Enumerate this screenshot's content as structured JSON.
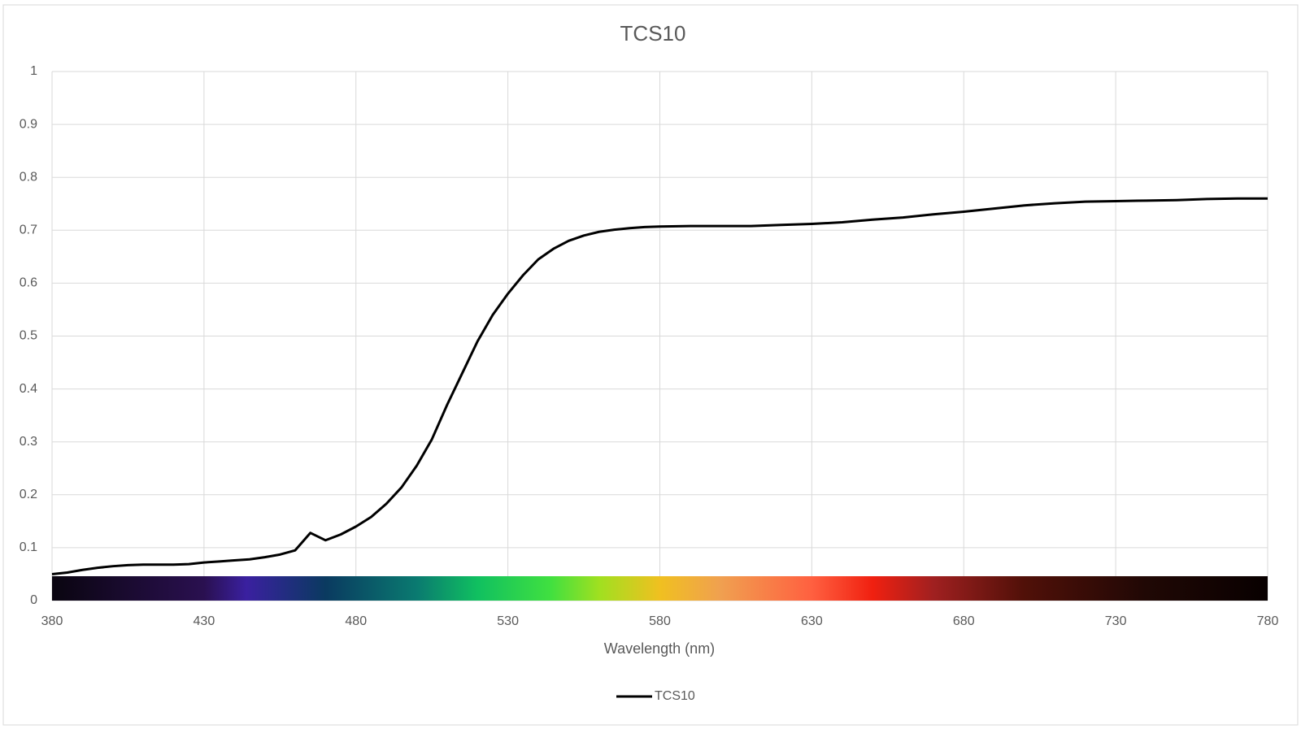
{
  "chart_data": {
    "type": "line",
    "title": "TCS10",
    "x_label": "Wavelength (nm)",
    "x": [
      380,
      385,
      390,
      395,
      400,
      405,
      410,
      415,
      420,
      425,
      430,
      435,
      440,
      445,
      450,
      455,
      460,
      465,
      470,
      475,
      480,
      485,
      490,
      495,
      500,
      505,
      510,
      515,
      520,
      525,
      530,
      535,
      540,
      545,
      550,
      555,
      560,
      565,
      570,
      575,
      580,
      590,
      600,
      610,
      620,
      630,
      640,
      650,
      660,
      670,
      680,
      690,
      700,
      710,
      720,
      730,
      740,
      750,
      760,
      770,
      780
    ],
    "series": [
      {
        "name": "TCS10",
        "color": "#000000",
        "values": [
          0.05,
          0.053,
          0.058,
          0.062,
          0.065,
          0.067,
          0.068,
          0.068,
          0.068,
          0.069,
          0.072,
          0.074,
          0.076,
          0.078,
          0.082,
          0.087,
          0.095,
          0.128,
          0.114,
          0.125,
          0.14,
          0.158,
          0.183,
          0.214,
          0.255,
          0.305,
          0.37,
          0.43,
          0.49,
          0.54,
          0.58,
          0.615,
          0.645,
          0.665,
          0.68,
          0.69,
          0.697,
          0.701,
          0.704,
          0.706,
          0.707,
          0.708,
          0.708,
          0.708,
          0.71,
          0.712,
          0.715,
          0.72,
          0.724,
          0.73,
          0.735,
          0.741,
          0.747,
          0.751,
          0.754,
          0.755,
          0.756,
          0.757,
          0.759,
          0.76,
          0.76
        ]
      }
    ],
    "xlim": [
      380,
      780
    ],
    "xticks": [
      380,
      430,
      480,
      530,
      580,
      630,
      680,
      730,
      780
    ],
    "ylim": [
      0,
      1
    ],
    "yticks": [
      0,
      0.1,
      0.2,
      0.3,
      0.4,
      0.5,
      0.6,
      0.7,
      0.8,
      0.9,
      1
    ],
    "grid": true,
    "legend": "bottom"
  }
}
